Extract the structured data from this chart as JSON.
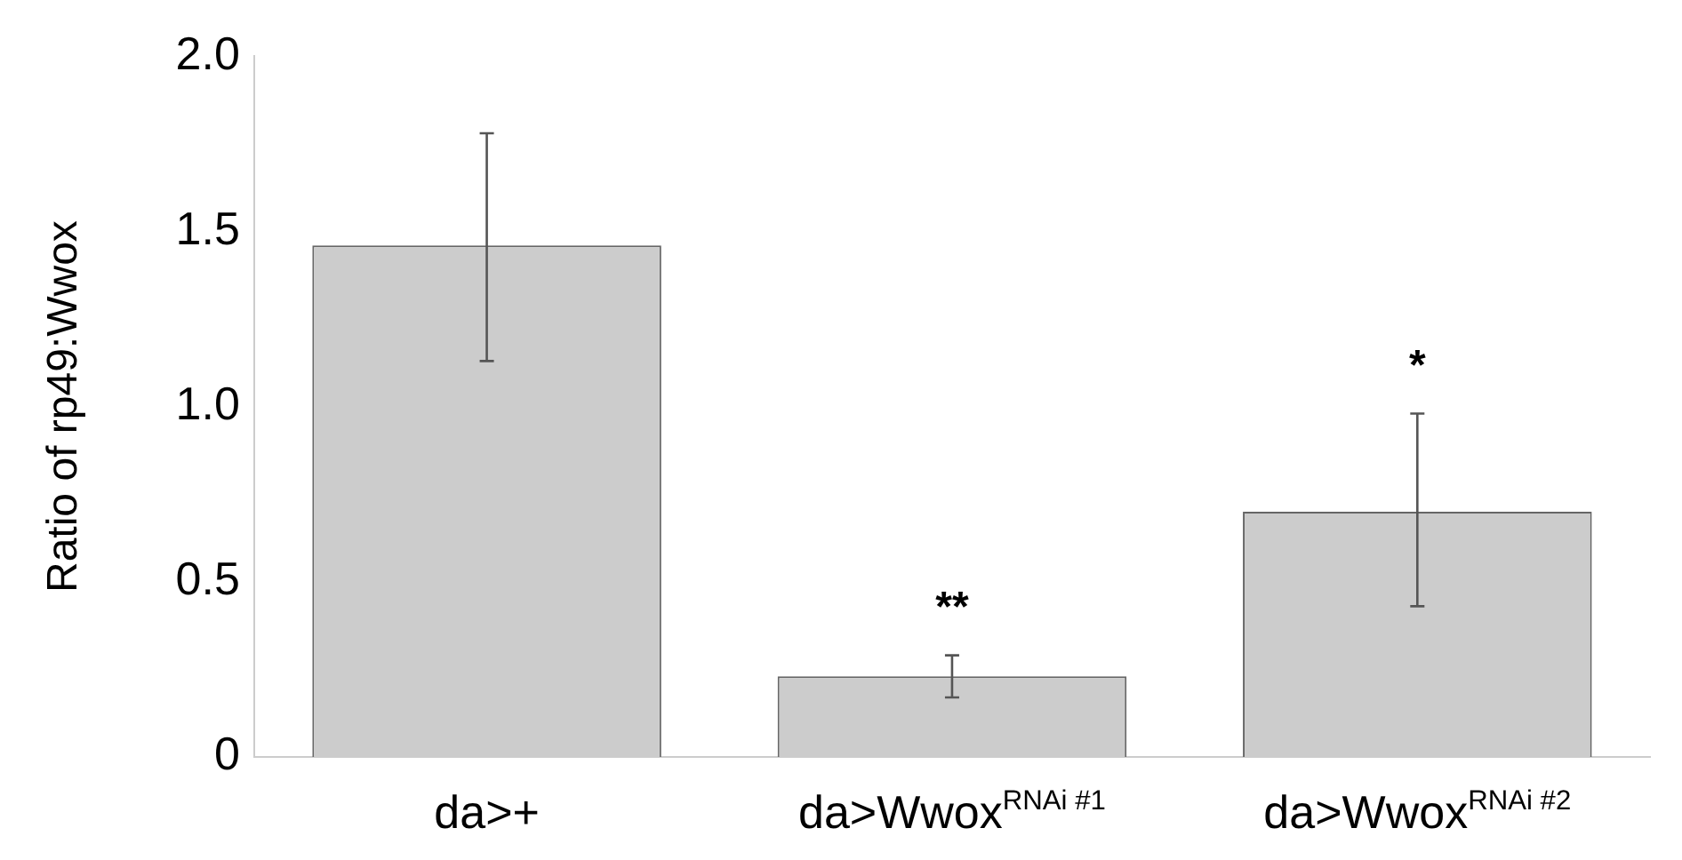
{
  "chart_data": {
    "type": "bar",
    "ylabel": "Ratio of rp49:Wwox",
    "categories": [
      "da>+",
      "da>Wwox$^{RNAi #1}$",
      "da>Wwox$^{RNAi #2}$"
    ],
    "values": [
      1.46,
      0.23,
      0.7
    ],
    "errors": [
      [
        1.13,
        1.78
      ],
      [
        0.17,
        0.29
      ],
      [
        0.43,
        0.98
      ]
    ],
    "color": "#cccccc",
    "ylim": [
      0,
      2
    ],
    "yticks": [
      0,
      0.5,
      {
        "value": 1,
        "label": "1.0"
      },
      1.5,
      {
        "value": 2,
        "label": "2.0"
      }
    ],
    "grid": false,
    "legend": false,
    "annotations": [
      {
        "text": "**",
        "x": "da>Wwox$^{RNAi #1}$",
        "y": 0.29
      },
      {
        "text": "*",
        "x": "da>Wwox$^{RNAi #2}$",
        "y": 0.98
      }
    ]
  }
}
